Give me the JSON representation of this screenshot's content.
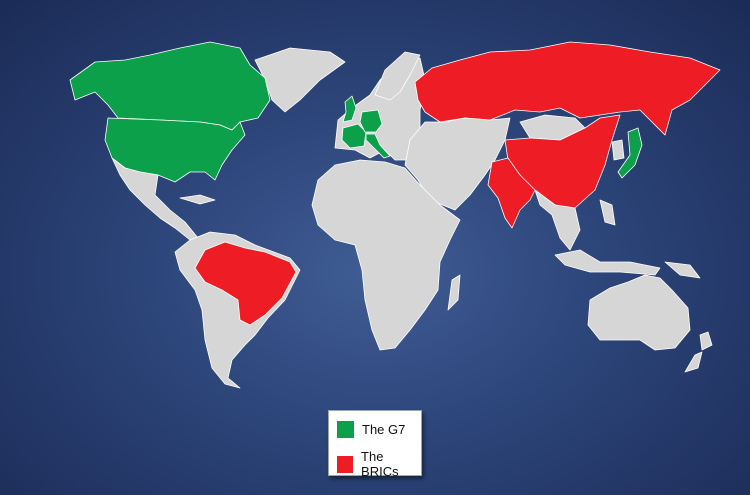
{
  "colors": {
    "g7": "#0da04a",
    "brics": "#ee1c25",
    "other_land": "#d6d6d6",
    "ocean": "#2c4478"
  },
  "legend": {
    "items": [
      {
        "label": "The G7",
        "color": "#0da04a"
      },
      {
        "label": "The BRICs",
        "color": "#ee1c25"
      }
    ]
  },
  "groups": {
    "g7": [
      "United States",
      "Canada",
      "United Kingdom",
      "France",
      "Germany",
      "Italy",
      "Japan"
    ],
    "brics": [
      "Brazil",
      "Russia",
      "India",
      "China"
    ]
  }
}
